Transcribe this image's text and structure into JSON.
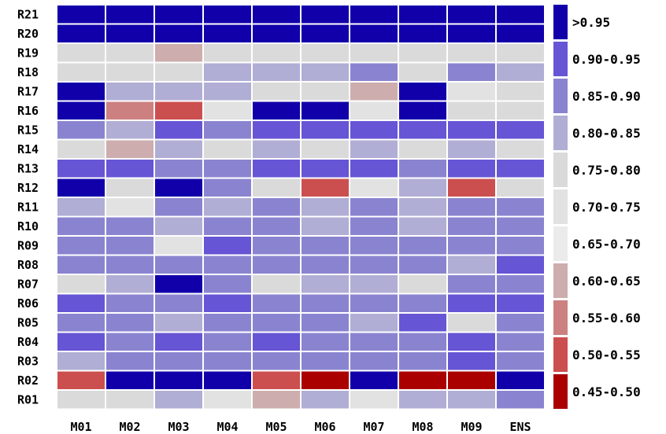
{
  "chart_data": {
    "type": "heatmap",
    "title": "",
    "xlabel": "",
    "ylabel": "",
    "columns": [
      "M01",
      "M02",
      "M03",
      "M04",
      "M05",
      "M06",
      "M07",
      "M08",
      "M09",
      "ENS"
    ],
    "rows": [
      "R21",
      "R20",
      "R19",
      "R18",
      "R17",
      "R16",
      "R15",
      "R14",
      "R13",
      "R12",
      "R11",
      "R10",
      "R09",
      "R08",
      "R07",
      "R06",
      "R05",
      "R04",
      "R03",
      "R02",
      "R01"
    ],
    "legend": {
      "placement": "right",
      "bins": [
        {
          "label": ">0.95",
          "color": "#1100aa"
        },
        {
          "label": "0.90-0.95",
          "color": "#6655d4"
        },
        {
          "label": "0.85-0.90",
          "color": "#8a84d0"
        },
        {
          "label": "0.80-0.85",
          "color": "#b0aed4"
        },
        {
          "label": "0.75-0.80",
          "color": "#dadada"
        },
        {
          "label": "0.70-0.75",
          "color": "#e2e2e2"
        },
        {
          "label": "0.65-0.70",
          "color": "#ebebeb"
        },
        {
          "label": "0.60-0.65",
          "color": "#cdadad"
        },
        {
          "label": "0.55-0.60",
          "color": "#cc8080"
        },
        {
          "label": "0.50-0.55",
          "color": "#cc4f4f"
        },
        {
          "label": "0.45-0.50",
          "color": "#aa0000"
        }
      ]
    },
    "cells": [
      [
        ">0.95",
        ">0.95",
        ">0.95",
        ">0.95",
        ">0.95",
        ">0.95",
        ">0.95",
        ">0.95",
        ">0.95",
        ">0.95"
      ],
      [
        ">0.95",
        ">0.95",
        ">0.95",
        ">0.95",
        ">0.95",
        ">0.95",
        ">0.95",
        ">0.95",
        ">0.95",
        ">0.95"
      ],
      [
        "0.75-0.80",
        "0.75-0.80",
        "0.60-0.65",
        "0.75-0.80",
        "0.75-0.80",
        "0.75-0.80",
        "0.75-0.80",
        "0.75-0.80",
        "0.75-0.80",
        "0.75-0.80"
      ],
      [
        "0.75-0.80",
        "0.75-0.80",
        "0.75-0.80",
        "0.80-0.85",
        "0.80-0.85",
        "0.80-0.85",
        "0.85-0.90",
        "0.75-0.80",
        "0.85-0.90",
        "0.80-0.85"
      ],
      [
        ">0.95",
        "0.80-0.85",
        "0.80-0.85",
        "0.80-0.85",
        "0.75-0.80",
        "0.75-0.80",
        "0.60-0.65",
        ">0.95",
        "0.70-0.75",
        "0.75-0.80"
      ],
      [
        ">0.95",
        "0.55-0.60",
        "0.50-0.55",
        "0.70-0.75",
        ">0.95",
        ">0.95",
        "0.70-0.75",
        ">0.95",
        "0.75-0.80",
        "0.75-0.80"
      ],
      [
        "0.85-0.90",
        "0.80-0.85",
        "0.90-0.95",
        "0.85-0.90",
        "0.90-0.95",
        "0.90-0.95",
        "0.90-0.95",
        "0.90-0.95",
        "0.90-0.95",
        "0.90-0.95"
      ],
      [
        "0.75-0.80",
        "0.60-0.65",
        "0.80-0.85",
        "0.75-0.80",
        "0.80-0.85",
        "0.75-0.80",
        "0.80-0.85",
        "0.75-0.80",
        "0.80-0.85",
        "0.75-0.80"
      ],
      [
        "0.90-0.95",
        "0.90-0.95",
        "0.85-0.90",
        "0.85-0.90",
        "0.90-0.95",
        "0.90-0.95",
        "0.90-0.95",
        "0.85-0.90",
        "0.90-0.95",
        "0.90-0.95"
      ],
      [
        ">0.95",
        "0.75-0.80",
        ">0.95",
        "0.85-0.90",
        "0.75-0.80",
        "0.50-0.55",
        "0.70-0.75",
        "0.80-0.85",
        "0.50-0.55",
        "0.75-0.80"
      ],
      [
        "0.80-0.85",
        "0.70-0.75",
        "0.85-0.90",
        "0.80-0.85",
        "0.85-0.90",
        "0.80-0.85",
        "0.85-0.90",
        "0.80-0.85",
        "0.85-0.90",
        "0.85-0.90"
      ],
      [
        "0.85-0.90",
        "0.85-0.90",
        "0.80-0.85",
        "0.85-0.90",
        "0.85-0.90",
        "0.80-0.85",
        "0.85-0.90",
        "0.80-0.85",
        "0.85-0.90",
        "0.85-0.90"
      ],
      [
        "0.85-0.90",
        "0.85-0.90",
        "0.70-0.75",
        "0.90-0.95",
        "0.85-0.90",
        "0.85-0.90",
        "0.85-0.90",
        "0.85-0.90",
        "0.85-0.90",
        "0.85-0.90"
      ],
      [
        "0.85-0.90",
        "0.85-0.90",
        "0.85-0.90",
        "0.85-0.90",
        "0.85-0.90",
        "0.85-0.90",
        "0.85-0.90",
        "0.85-0.90",
        "0.80-0.85",
        "0.90-0.95"
      ],
      [
        "0.75-0.80",
        "0.80-0.85",
        ">0.95",
        "0.85-0.90",
        "0.75-0.80",
        "0.80-0.85",
        "0.80-0.85",
        "0.75-0.80",
        "0.85-0.90",
        "0.85-0.90"
      ],
      [
        "0.90-0.95",
        "0.85-0.90",
        "0.85-0.90",
        "0.90-0.95",
        "0.85-0.90",
        "0.85-0.90",
        "0.85-0.90",
        "0.85-0.90",
        "0.90-0.95",
        "0.90-0.95"
      ],
      [
        "0.85-0.90",
        "0.85-0.90",
        "0.80-0.85",
        "0.85-0.90",
        "0.85-0.90",
        "0.85-0.90",
        "0.80-0.85",
        "0.90-0.95",
        "0.75-0.80",
        "0.85-0.90"
      ],
      [
        "0.90-0.95",
        "0.85-0.90",
        "0.90-0.95",
        "0.85-0.90",
        "0.90-0.95",
        "0.85-0.90",
        "0.85-0.90",
        "0.85-0.90",
        "0.90-0.95",
        "0.85-0.90"
      ],
      [
        "0.80-0.85",
        "0.85-0.90",
        "0.85-0.90",
        "0.85-0.90",
        "0.85-0.90",
        "0.85-0.90",
        "0.85-0.90",
        "0.85-0.90",
        "0.90-0.95",
        "0.85-0.90"
      ],
      [
        "0.50-0.55",
        ">0.95",
        ">0.95",
        ">0.95",
        "0.50-0.55",
        "0.45-0.50",
        ">0.95",
        "0.45-0.50",
        "0.45-0.50",
        ">0.95"
      ],
      [
        "0.75-0.80",
        "0.75-0.80",
        "0.80-0.85",
        "0.70-0.75",
        "0.60-0.65",
        "0.80-0.85",
        "0.70-0.75",
        "0.80-0.85",
        "0.80-0.85",
        "0.85-0.90"
      ]
    ]
  }
}
